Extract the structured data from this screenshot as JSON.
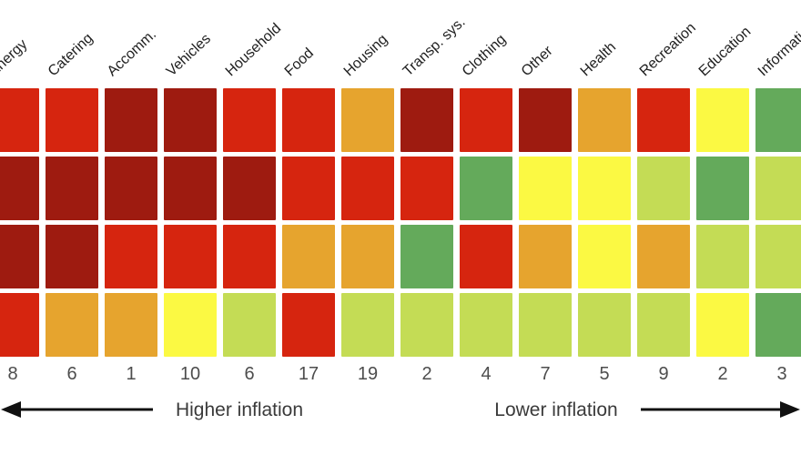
{
  "chart_data": {
    "type": "heatmap",
    "title": "",
    "columns": [
      "Energy",
      "Catering",
      "Accomm.",
      "Vehicles",
      "Household",
      "Food",
      "Housing",
      "Transp. sys.",
      "Clothing",
      "Other",
      "Health",
      "Recreation",
      "Education",
      "Information"
    ],
    "column_values": [
      "8",
      "6",
      "1",
      "10",
      "6",
      "17",
      "19",
      "2",
      "4",
      "7",
      "5",
      "9",
      "2",
      "3"
    ],
    "rows": [
      [
        "red",
        "red",
        "darkred",
        "darkred",
        "red",
        "red",
        "orange",
        "darkred",
        "red",
        "darkred",
        "orange",
        "red",
        "yellow",
        "green"
      ],
      [
        "darkred",
        "darkred",
        "darkred",
        "darkred",
        "darkred",
        "red",
        "red",
        "red",
        "green",
        "yellow",
        "yellow",
        "yellowgreen",
        "green",
        "yellowgreen"
      ],
      [
        "darkred",
        "darkred",
        "red",
        "red",
        "red",
        "orange",
        "orange",
        "green",
        "red",
        "orange",
        "yellow",
        "orange",
        "yellowgreen",
        "yellowgreen"
      ],
      [
        "red",
        "orange",
        "orange",
        "yellow",
        "yellowgreen",
        "red",
        "yellowgreen",
        "yellowgreen",
        "yellowgreen",
        "yellowgreen",
        "yellowgreen",
        "yellowgreen",
        "yellow",
        "green"
      ]
    ],
    "palette": {
      "red": "#d6250f",
      "darkred": "#9e1b10",
      "orange": "#e6a42e",
      "yellow": "#fbf943",
      "yellowgreen": "#c4dc55",
      "green": "#64aa5b"
    },
    "legend": {
      "higher_label": "Higher inflation",
      "lower_label": "Lower inflation"
    },
    "layout": {
      "grid_rows": 4,
      "grid_cols": 14,
      "gridlines": false,
      "legend_position": "bottom"
    }
  }
}
